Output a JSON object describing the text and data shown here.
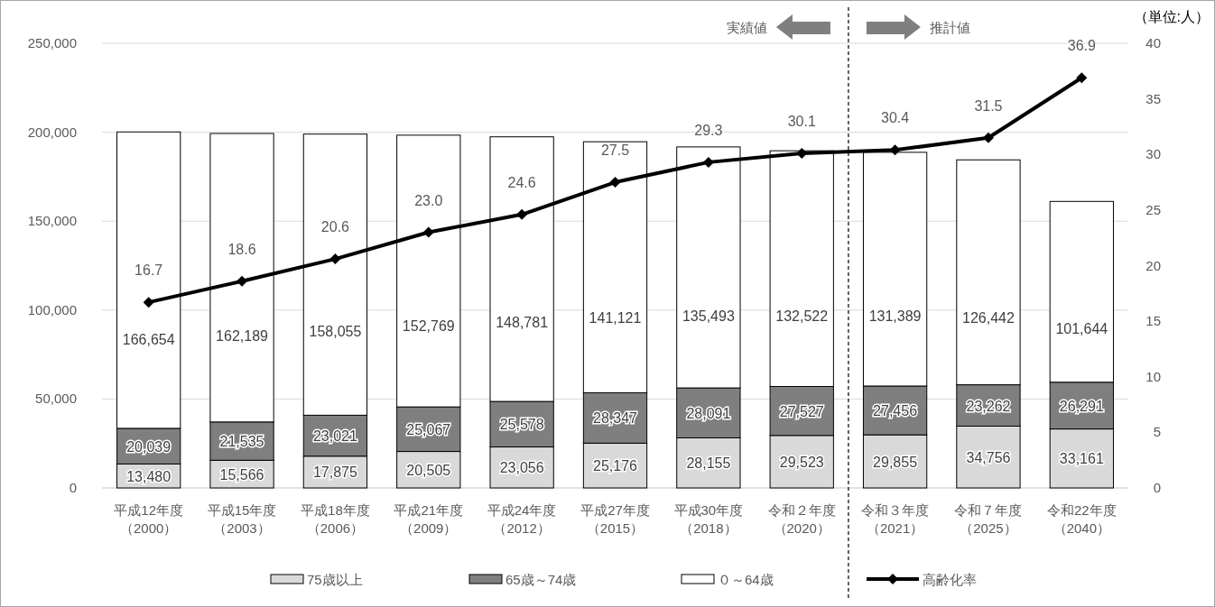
{
  "chart_data": {
    "type": "bar",
    "stacked": true,
    "categories": [
      "平成12年度（2000）",
      "平成15年度（2003）",
      "平成18年度（2006）",
      "平成21年度（2009）",
      "平成24年度（2012）",
      "平成27年度（2015）",
      "平成30年度（2018）",
      "令和２年度（2020）",
      "令和３年度（2021）",
      "令和７年度（2025）",
      "令和22年度（2040）"
    ],
    "series": [
      {
        "name": "75歳以上",
        "color": "#d9d9d9",
        "values": [
          13480,
          15566,
          17875,
          20505,
          23056,
          25176,
          28155,
          29523,
          29855,
          34756,
          33161
        ],
        "value_labels": [
          "13,480",
          "15,566",
          "17,875",
          "20,505",
          "23,056",
          "25,176",
          "28,155",
          "29,523",
          "29,855",
          "34,756",
          "33,161"
        ]
      },
      {
        "name": "65歳～74歳",
        "color": "#7f7f7f",
        "values": [
          20039,
          21535,
          23021,
          25067,
          25578,
          28347,
          28091,
          27527,
          27456,
          23262,
          26291
        ],
        "value_labels": [
          "20,039",
          "21,535",
          "23,021",
          "25,067",
          "25,578",
          "28,347",
          "28,091",
          "27,527",
          "27,456",
          "23,262",
          "26,291"
        ]
      },
      {
        "name": "０～64歳",
        "color": "#ffffff",
        "values": [
          166654,
          162189,
          158055,
          152769,
          148781,
          141121,
          135493,
          132522,
          131389,
          126442,
          101644
        ],
        "value_labels": [
          "166,654",
          "162,189",
          "158,055",
          "152,769",
          "148,781",
          "141,121",
          "135,493",
          "132,522",
          "131,389",
          "126,442",
          "101,644"
        ]
      },
      {
        "name": "高齢化率",
        "type": "line",
        "axis": "y2",
        "color": "#000000",
        "marker": "diamond",
        "values": [
          16.7,
          18.6,
          20.6,
          23.0,
          24.6,
          27.5,
          29.3,
          30.1,
          30.4,
          31.5,
          36.9
        ],
        "value_labels": [
          "16.7",
          "18.6",
          "20.6",
          "23.0",
          "24.6",
          "27.5",
          "29.3",
          "30.1",
          "30.4",
          "31.5",
          "36.9"
        ]
      }
    ],
    "ylim": [
      0,
      250000
    ],
    "yticks": [
      {
        "value": 0,
        "label": "0"
      },
      {
        "value": 50000,
        "label": "50,000"
      },
      {
        "value": 100000,
        "label": "100,000"
      },
      {
        "value": 150000,
        "label": "150,000"
      },
      {
        "value": 200000,
        "label": "200,000"
      },
      {
        "value": 250000,
        "label": "250,000"
      }
    ],
    "y2lim": [
      0,
      40
    ],
    "y2ticks": [
      0,
      5,
      10,
      15,
      20,
      25,
      30,
      35,
      40
    ],
    "grid": "y",
    "legend": "bottom",
    "annotations": [
      "実績値",
      "推計値",
      "（単位:人）"
    ]
  }
}
